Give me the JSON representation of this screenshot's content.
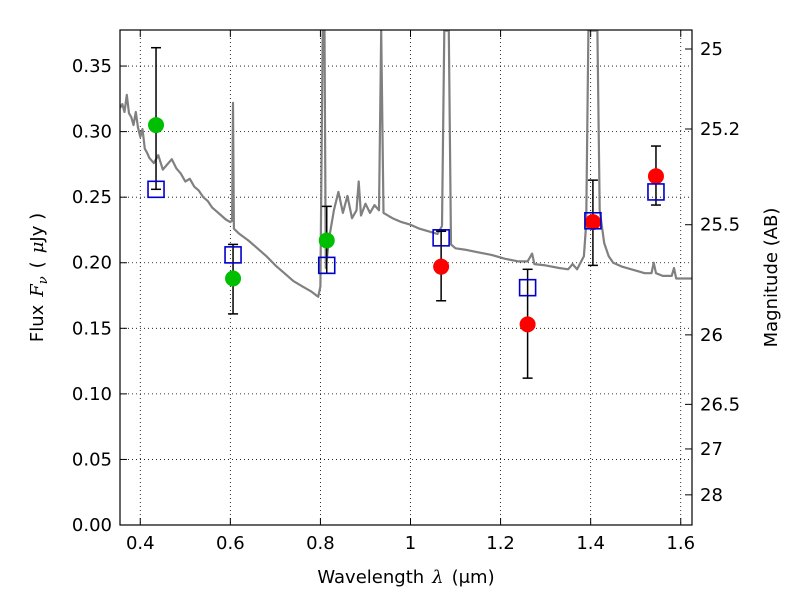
{
  "chart_data": {
    "type": "scatter",
    "xlabel_prefix": "Wavelength",
    "xlabel_symbol": "λ",
    "xlabel_unit": "(μm)",
    "ylabel_prefix": "Flux",
    "ylabel_symbol": "F",
    "ylabel_subscript": "ν",
    "ylabel_unit_open": "(",
    "ylabel_unit_mu": "μ",
    "ylabel_unit_rest": "Jy )",
    "y2label": "Magnitude (AB)",
    "xlim": [
      0.355,
      1.625
    ],
    "ylim": [
      0.0,
      0.3775
    ],
    "grid": true,
    "x_ticks": [
      0.4,
      0.6,
      0.8,
      1.0,
      1.2,
      1.4,
      1.6
    ],
    "x_tick_labels": [
      "0.4",
      "0.6",
      "0.8",
      "1",
      "1.2",
      "1.4",
      "1.6"
    ],
    "y_ticks": [
      0.0,
      0.05,
      0.1,
      0.15,
      0.2,
      0.25,
      0.3,
      0.35
    ],
    "y_tick_labels": [
      "0.00",
      "0.05",
      "0.10",
      "0.15",
      "0.20",
      "0.25",
      "0.30",
      "0.35"
    ],
    "y2_ticks": [
      {
        "label": "25",
        "flux": 0.363
      },
      {
        "label": "25.2",
        "flux": 0.302
      },
      {
        "label": "25.5",
        "flux": 0.229
      },
      {
        "label": "26",
        "flux": 0.145
      },
      {
        "label": "26.5",
        "flux": 0.092
      },
      {
        "label": "27",
        "flux": 0.058
      },
      {
        "label": "28",
        "flux": 0.023
      }
    ],
    "series": [
      {
        "marker": "circle",
        "color": "#00bf00",
        "points": [
          {
            "x": 0.435,
            "y": 0.305
          },
          {
            "x": 0.606,
            "y": 0.188
          },
          {
            "x": 0.814,
            "y": 0.217
          }
        ]
      },
      {
        "marker": "circle",
        "color": "#ff0000",
        "points": [
          {
            "x": 1.068,
            "y": 0.197
          },
          {
            "x": 1.26,
            "y": 0.153
          },
          {
            "x": 1.405,
            "y": 0.231
          },
          {
            "x": 1.545,
            "y": 0.266
          }
        ]
      },
      {
        "marker": "open-square",
        "color": "#0000cc",
        "points": [
          {
            "x": 0.435,
            "y": 0.256,
            "err_lo": 0.256,
            "err_hi": 0.364
          },
          {
            "x": 0.606,
            "y": 0.206,
            "err_lo": 0.161,
            "err_hi": 0.214
          },
          {
            "x": 0.814,
            "y": 0.198,
            "err_lo": 0.192,
            "err_hi": 0.243
          },
          {
            "x": 1.068,
            "y": 0.219,
            "err_lo": 0.171,
            "err_hi": 0.224
          },
          {
            "x": 1.26,
            "y": 0.181,
            "err_lo": 0.112,
            "err_hi": 0.195
          },
          {
            "x": 1.405,
            "y": 0.232,
            "err_lo": 0.198,
            "err_hi": 0.263
          },
          {
            "x": 1.545,
            "y": 0.254,
            "err_lo": 0.244,
            "err_hi": 0.289
          }
        ]
      },
      {
        "marker": "line",
        "color": "#808080",
        "points": [
          {
            "x": 0.355,
            "y": 0.318
          },
          {
            "x": 0.36,
            "y": 0.321
          },
          {
            "x": 0.365,
            "y": 0.315
          },
          {
            "x": 0.37,
            "y": 0.328
          },
          {
            "x": 0.375,
            "y": 0.314
          },
          {
            "x": 0.38,
            "y": 0.311
          },
          {
            "x": 0.385,
            "y": 0.305
          },
          {
            "x": 0.39,
            "y": 0.315
          },
          {
            "x": 0.395,
            "y": 0.303
          },
          {
            "x": 0.4,
            "y": 0.296
          },
          {
            "x": 0.405,
            "y": 0.302
          },
          {
            "x": 0.41,
            "y": 0.287
          },
          {
            "x": 0.415,
            "y": 0.284
          },
          {
            "x": 0.42,
            "y": 0.28
          },
          {
            "x": 0.43,
            "y": 0.276
          },
          {
            "x": 0.44,
            "y": 0.282
          },
          {
            "x": 0.45,
            "y": 0.271
          },
          {
            "x": 0.46,
            "y": 0.275
          },
          {
            "x": 0.47,
            "y": 0.279
          },
          {
            "x": 0.48,
            "y": 0.272
          },
          {
            "x": 0.49,
            "y": 0.268
          },
          {
            "x": 0.5,
            "y": 0.262
          },
          {
            "x": 0.51,
            "y": 0.264
          },
          {
            "x": 0.52,
            "y": 0.258
          },
          {
            "x": 0.53,
            "y": 0.255
          },
          {
            "x": 0.54,
            "y": 0.25
          },
          {
            "x": 0.55,
            "y": 0.247
          },
          {
            "x": 0.56,
            "y": 0.242
          },
          {
            "x": 0.57,
            "y": 0.239
          },
          {
            "x": 0.58,
            "y": 0.236
          },
          {
            "x": 0.59,
            "y": 0.233
          },
          {
            "x": 0.6,
            "y": 0.231
          },
          {
            "x": 0.604,
            "y": 0.232
          },
          {
            "x": 0.606,
            "y": 0.322
          },
          {
            "x": 0.608,
            "y": 0.226
          },
          {
            "x": 0.62,
            "y": 0.222
          },
          {
            "x": 0.64,
            "y": 0.217
          },
          {
            "x": 0.66,
            "y": 0.211
          },
          {
            "x": 0.68,
            "y": 0.205
          },
          {
            "x": 0.7,
            "y": 0.198
          },
          {
            "x": 0.72,
            "y": 0.192
          },
          {
            "x": 0.74,
            "y": 0.186
          },
          {
            "x": 0.76,
            "y": 0.182
          },
          {
            "x": 0.78,
            "y": 0.178
          },
          {
            "x": 0.795,
            "y": 0.174
          },
          {
            "x": 0.8,
            "y": 0.182
          },
          {
            "x": 0.805,
            "y": 0.377
          },
          {
            "x": 0.809,
            "y": 0.377
          },
          {
            "x": 0.812,
            "y": 0.196
          },
          {
            "x": 0.82,
            "y": 0.22
          },
          {
            "x": 0.83,
            "y": 0.24
          },
          {
            "x": 0.84,
            "y": 0.254
          },
          {
            "x": 0.85,
            "y": 0.238
          },
          {
            "x": 0.86,
            "y": 0.251
          },
          {
            "x": 0.87,
            "y": 0.234
          },
          {
            "x": 0.88,
            "y": 0.24
          },
          {
            "x": 0.885,
            "y": 0.262
          },
          {
            "x": 0.89,
            "y": 0.236
          },
          {
            "x": 0.9,
            "y": 0.245
          },
          {
            "x": 0.91,
            "y": 0.238
          },
          {
            "x": 0.92,
            "y": 0.244
          },
          {
            "x": 0.93,
            "y": 0.24
          },
          {
            "x": 0.935,
            "y": 0.377
          },
          {
            "x": 0.94,
            "y": 0.238
          },
          {
            "x": 0.96,
            "y": 0.234
          },
          {
            "x": 0.98,
            "y": 0.231
          },
          {
            "x": 1.0,
            "y": 0.229
          },
          {
            "x": 1.02,
            "y": 0.226
          },
          {
            "x": 1.04,
            "y": 0.224
          },
          {
            "x": 1.06,
            "y": 0.222
          },
          {
            "x": 1.07,
            "y": 0.228
          },
          {
            "x": 1.075,
            "y": 0.377
          },
          {
            "x": 1.085,
            "y": 0.377
          },
          {
            "x": 1.09,
            "y": 0.214
          },
          {
            "x": 1.1,
            "y": 0.211
          },
          {
            "x": 1.12,
            "y": 0.21
          },
          {
            "x": 1.15,
            "y": 0.208
          },
          {
            "x": 1.18,
            "y": 0.206
          },
          {
            "x": 1.21,
            "y": 0.203
          },
          {
            "x": 1.24,
            "y": 0.201
          },
          {
            "x": 1.26,
            "y": 0.201
          },
          {
            "x": 1.27,
            "y": 0.207
          },
          {
            "x": 1.275,
            "y": 0.199
          },
          {
            "x": 1.3,
            "y": 0.198
          },
          {
            "x": 1.33,
            "y": 0.196
          },
          {
            "x": 1.35,
            "y": 0.195
          },
          {
            "x": 1.36,
            "y": 0.199
          },
          {
            "x": 1.37,
            "y": 0.195
          },
          {
            "x": 1.385,
            "y": 0.205
          },
          {
            "x": 1.39,
            "y": 0.23
          },
          {
            "x": 1.395,
            "y": 0.377
          },
          {
            "x": 1.415,
            "y": 0.377
          },
          {
            "x": 1.42,
            "y": 0.24
          },
          {
            "x": 1.43,
            "y": 0.215
          },
          {
            "x": 1.44,
            "y": 0.205
          },
          {
            "x": 1.45,
            "y": 0.2
          },
          {
            "x": 1.47,
            "y": 0.197
          },
          {
            "x": 1.5,
            "y": 0.194
          },
          {
            "x": 1.52,
            "y": 0.192
          },
          {
            "x": 1.535,
            "y": 0.192
          },
          {
            "x": 1.54,
            "y": 0.2
          },
          {
            "x": 1.545,
            "y": 0.192
          },
          {
            "x": 1.56,
            "y": 0.19
          },
          {
            "x": 1.58,
            "y": 0.19
          },
          {
            "x": 1.585,
            "y": 0.196
          },
          {
            "x": 1.59,
            "y": 0.188
          },
          {
            "x": 1.625,
            "y": 0.188
          }
        ]
      }
    ]
  }
}
